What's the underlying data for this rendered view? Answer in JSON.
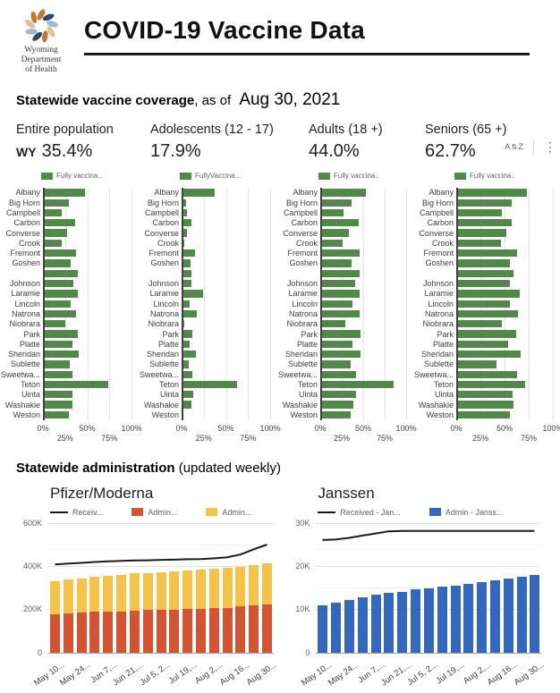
{
  "header": {
    "title": "COVID-19 Vaccine Data",
    "logo_lines": [
      "Wyoming",
      "Department",
      "of Health"
    ]
  },
  "coverage": {
    "heading_bold": "Statewide vaccine coverage",
    "heading_rest": ", as of",
    "date": "Aug 30, 2021",
    "toolbar": {
      "sort_a": "A",
      "sort_arrows": "⇅",
      "sort_z": "Z",
      "menu_icon": "⋮"
    },
    "stats": [
      {
        "label": "Entire population",
        "prefix": "WY",
        "value": "35.4%"
      },
      {
        "label": "Adolescents (12 - 17)",
        "prefix": "",
        "value": "17.9%"
      },
      {
        "label": "Adults (18 +)",
        "prefix": "",
        "value": "44.0%"
      },
      {
        "label": "Seniors (65 +)",
        "prefix": "",
        "value": "62.7%"
      }
    ]
  },
  "administration": {
    "heading_bold": "Statewide administration",
    "heading_rest": " (updated weekly)"
  },
  "colors": {
    "green": "#52894b",
    "red": "#d35432",
    "yellow": "#f3c34a",
    "blue": "#3368bc",
    "line": "#1a1a1a",
    "logo": [
      "#c9742f",
      "#2b4a66",
      "#97b9d2",
      "#d6c39b"
    ]
  },
  "chart_data": [
    {
      "type": "bar",
      "orientation": "horizontal",
      "group": "Entire population",
      "legend": "Fully vaccina..",
      "bar_color": "#52894b",
      "categories": [
        "Albany",
        "Big Horn",
        "Campbell",
        "Carbon",
        "Converse",
        "Crook",
        "Fremont",
        "Goshen",
        "",
        "Johnson",
        "Laramie",
        "Lincoln",
        "Natrona",
        "Niobrara",
        "Park",
        "Platte",
        "Sheridan",
        "Sublette",
        "Sweetwa...",
        "Teton",
        "Uinta",
        "Washakie",
        "Weston"
      ],
      "values": [
        47,
        29,
        21,
        36,
        27,
        21,
        37,
        31,
        39,
        34,
        39,
        31,
        37,
        25,
        39,
        33,
        40,
        30,
        33,
        74,
        33,
        33,
        29
      ],
      "xlim": [
        0,
        100
      ],
      "x_ticks": [
        "0%",
        "25%",
        "50%",
        "75%",
        "100%"
      ]
    },
    {
      "type": "bar",
      "orientation": "horizontal",
      "group": "Adolescents (12 - 17)",
      "legend": "FullyVaccina...",
      "bar_color": "#52894b",
      "categories": [
        "Albany",
        "Big Horn",
        "Campbell",
        "Carbon",
        "Converse",
        "Crook",
        "Fremont",
        "Goshen",
        "",
        "Johnson",
        "Laramie",
        "Lincoln",
        "Natrona",
        "Niobrara",
        "Park",
        "Platte",
        "Sheridan",
        "Sublette",
        "Sweetwa...",
        "Teton",
        "Uinta",
        "Washakie",
        "Weston"
      ],
      "values": [
        37,
        5,
        6,
        11,
        6,
        3,
        15,
        10,
        11,
        11,
        24,
        9,
        17,
        3,
        12,
        9,
        16,
        8,
        12,
        63,
        13,
        11,
        2
      ],
      "xlim": [
        0,
        100
      ],
      "x_ticks": [
        "0%",
        "25%",
        "50%",
        "75%",
        "100%"
      ]
    },
    {
      "type": "bar",
      "orientation": "horizontal",
      "group": "Adults (18 +)",
      "legend": "Fully vaccina..",
      "bar_color": "#52894b",
      "categories": [
        "Albany",
        "Big Horn",
        "Campbell",
        "Carbon",
        "Converse",
        "Crook",
        "Fremont",
        "Goshen",
        "",
        "Johnson",
        "Laramie",
        "Lincoln",
        "Natrona",
        "Niobrara",
        "Park",
        "Platte",
        "Sheridan",
        "Sublette",
        "Sweetwa...",
        "Teton",
        "Uinta",
        "Washakie",
        "Weston"
      ],
      "values": [
        53,
        36,
        27,
        45,
        33,
        26,
        46,
        36,
        46,
        41,
        46,
        38,
        46,
        29,
        47,
        38,
        47,
        35,
        42,
        85,
        42,
        39,
        35
      ],
      "xlim": [
        0,
        100
      ],
      "x_ticks": [
        "0%",
        "25%",
        "50%",
        "75%",
        "100%"
      ]
    },
    {
      "type": "bar",
      "orientation": "horizontal",
      "group": "Seniors (65 +)",
      "legend": "Fully vaccina..",
      "bar_color": "#52894b",
      "categories": [
        "Albany",
        "Big Horn",
        "Campbell",
        "Carbon",
        "Converse",
        "Crook",
        "Fremont",
        "Goshen",
        "",
        "Johnson",
        "Laramie",
        "Lincoln",
        "Natrona",
        "Niobrara",
        "Park",
        "Platte",
        "Sheridan",
        "Sublette",
        "Sweetwa...",
        "Teton",
        "Uinta",
        "Washakie",
        "Weston"
      ],
      "values": [
        73,
        57,
        47,
        57,
        52,
        46,
        63,
        56,
        59,
        56,
        66,
        56,
        64,
        47,
        62,
        54,
        67,
        42,
        63,
        71,
        58,
        59,
        56
      ],
      "xlim": [
        0,
        100
      ],
      "x_ticks": [
        "0%",
        "25%",
        "50%",
        "75%",
        "100%"
      ]
    },
    {
      "type": "bar",
      "stacked": true,
      "title": "Pfizer/Moderna",
      "n_bars": 17,
      "x_tick_labels": [
        "May 10...",
        "May 24...",
        "Jun 7,...",
        "Jun 21,...",
        "Jul 5, 2...",
        "Jul 19,...",
        "Aug 2,...",
        "Aug 16...",
        "Aug 30..."
      ],
      "x_tick_positions": [
        0,
        2,
        4,
        6,
        8,
        10,
        12,
        14,
        16
      ],
      "ylim": [
        0,
        600000
      ],
      "y_ticks": [
        {
          "v": 0,
          "label": "0"
        },
        {
          "v": 200000,
          "label": "200K"
        },
        {
          "v": 400000,
          "label": "400K"
        },
        {
          "v": 600000,
          "label": "600K"
        }
      ],
      "minor_grid": 100000,
      "series": [
        {
          "label": "Receiv...",
          "type": "line",
          "color": "#1a1a1a",
          "values": [
            413000,
            417000,
            420000,
            424000,
            427000,
            429000,
            431000,
            432000,
            434000,
            435000,
            437000,
            438000,
            441000,
            446000,
            459000,
            483000,
            505000
          ]
        },
        {
          "label": "Admin...",
          "type": "bar",
          "color": "#d35432",
          "values": [
            175000,
            179000,
            184000,
            187000,
            190000,
            190000,
            193000,
            195000,
            195000,
            198000,
            200000,
            202000,
            205000,
            207000,
            214000,
            217000,
            220000
          ]
        },
        {
          "label": "Admin...",
          "type": "bar",
          "color": "#f3c34a",
          "values": [
            155000,
            158000,
            159000,
            162000,
            163000,
            169000,
            172000,
            173000,
            176000,
            176000,
            178000,
            180000,
            181000,
            184000,
            182000,
            185000,
            192000
          ]
        }
      ]
    },
    {
      "type": "bar",
      "stacked": false,
      "title": "Janssen",
      "n_bars": 17,
      "x_tick_labels": [
        "May 10...",
        "May 24...",
        "Jun 7,...",
        "Jun 21,...",
        "Jul 5, 2...",
        "Jul 19,...",
        "Aug 2,...",
        "Aug 16...",
        "Aug 30..."
      ],
      "x_tick_positions": [
        0,
        2,
        4,
        6,
        8,
        10,
        12,
        14,
        16
      ],
      "ylim": [
        0,
        30000
      ],
      "y_ticks": [
        {
          "v": 0,
          "label": "0"
        },
        {
          "v": 10000,
          "label": "10K"
        },
        {
          "v": 20000,
          "label": "20K"
        },
        {
          "v": 30000,
          "label": "30K"
        }
      ],
      "minor_grid": 5000,
      "series": [
        {
          "label": "Received - Jan...",
          "type": "line",
          "color": "#1a1a1a",
          "values": [
            26300,
            26400,
            26800,
            27300,
            27800,
            28300,
            28400,
            28400,
            28400,
            28400,
            28400,
            28400,
            28400,
            28400,
            28400,
            28400,
            28400
          ]
        },
        {
          "label": "Admin - Janss...",
          "type": "bar",
          "color": "#3368bc",
          "values": [
            10900,
            11500,
            12100,
            12800,
            13300,
            13700,
            14000,
            14600,
            14900,
            15300,
            15500,
            15900,
            16300,
            16600,
            17000,
            17400,
            17900
          ]
        }
      ]
    }
  ]
}
